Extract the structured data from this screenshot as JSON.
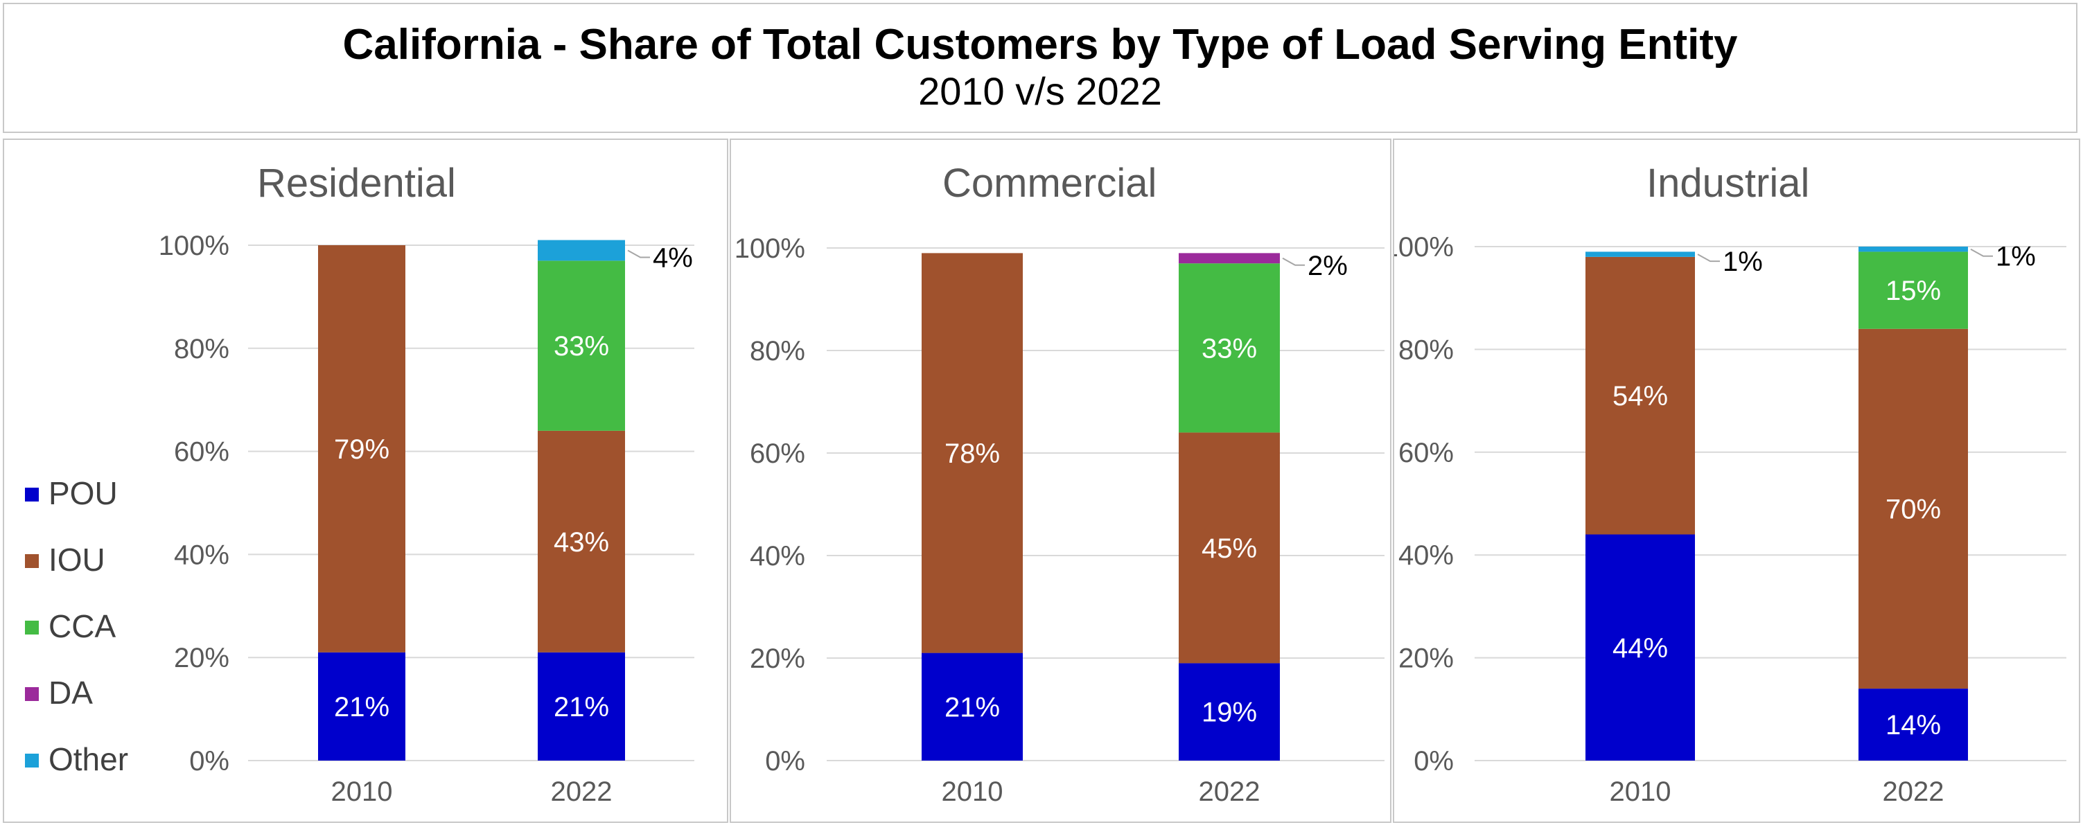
{
  "title": "California - Share of Total Customers by Type of Load Serving Entity",
  "subtitle": "2010 v/s 2022",
  "colors": {
    "POU": "#0000cc",
    "IOU": "#a0522d",
    "CCA": "#44bb44",
    "DA": "#9b2a9b",
    "Other": "#1ca1d9"
  },
  "legend": [
    "POU",
    "IOU",
    "CCA",
    "DA",
    "Other"
  ],
  "chart_data": [
    {
      "type": "bar",
      "stacked": true,
      "title": "Residential",
      "categories": [
        "2010",
        "2022"
      ],
      "ylim": [
        0,
        100
      ],
      "yticks": [
        "0%",
        "20%",
        "40%",
        "60%",
        "80%",
        "100%"
      ],
      "series": [
        {
          "name": "POU",
          "values": [
            21,
            21
          ],
          "labels": [
            "21%",
            "21%"
          ]
        },
        {
          "name": "IOU",
          "values": [
            79,
            43
          ],
          "labels": [
            "79%",
            "43%"
          ]
        },
        {
          "name": "CCA",
          "values": [
            0,
            33
          ],
          "labels": [
            "",
            "33%"
          ]
        },
        {
          "name": "DA",
          "values": [
            0,
            0
          ],
          "labels": [
            "",
            ""
          ]
        },
        {
          "name": "Other",
          "values": [
            0,
            4
          ],
          "labels": [
            "",
            "4%"
          ]
        }
      ]
    },
    {
      "type": "bar",
      "stacked": true,
      "title": "Commercial",
      "categories": [
        "2010",
        "2022"
      ],
      "ylim": [
        0,
        100
      ],
      "yticks": [
        "0%",
        "20%",
        "40%",
        "60%",
        "80%",
        "100%"
      ],
      "series": [
        {
          "name": "POU",
          "values": [
            21,
            19
          ],
          "labels": [
            "21%",
            "19%"
          ]
        },
        {
          "name": "IOU",
          "values": [
            78,
            45
          ],
          "labels": [
            "78%",
            "45%"
          ]
        },
        {
          "name": "CCA",
          "values": [
            0,
            33
          ],
          "labels": [
            "",
            "33%"
          ]
        },
        {
          "name": "DA",
          "values": [
            0,
            2
          ],
          "labels": [
            "",
            "2%"
          ]
        },
        {
          "name": "Other",
          "values": [
            0,
            0
          ],
          "labels": [
            "",
            ""
          ]
        }
      ]
    },
    {
      "type": "bar",
      "stacked": true,
      "title": "Industrial",
      "categories": [
        "2010",
        "2022"
      ],
      "ylim": [
        0,
        100
      ],
      "yticks": [
        "0%",
        "20%",
        "40%",
        "60%",
        "80%",
        "100%"
      ],
      "series": [
        {
          "name": "POU",
          "values": [
            44,
            14
          ],
          "labels": [
            "44%",
            "14%"
          ]
        },
        {
          "name": "IOU",
          "values": [
            54,
            70
          ],
          "labels": [
            "54%",
            "70%"
          ]
        },
        {
          "name": "CCA",
          "values": [
            0,
            15
          ],
          "labels": [
            "",
            "15%"
          ]
        },
        {
          "name": "DA",
          "values": [
            0,
            0
          ],
          "labels": [
            "",
            ""
          ]
        },
        {
          "name": "Other",
          "values": [
            1,
            1
          ],
          "labels": [
            "1%",
            "1%"
          ]
        }
      ]
    }
  ]
}
